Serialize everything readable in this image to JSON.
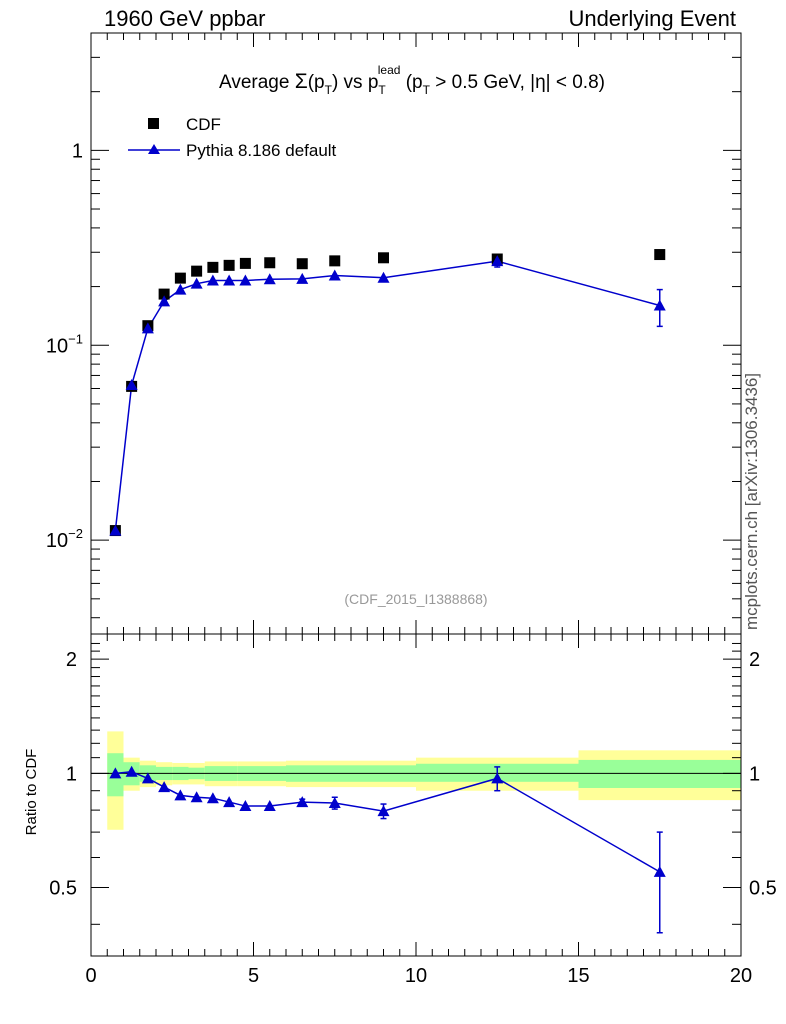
{
  "header": {
    "left": "1960 GeV ppbar",
    "right": "Underlying Event"
  },
  "watermark": "mcplots.cern.ch [arXiv:1306.3436]",
  "analysis_id": "(CDF_2015_I1388868)",
  "colors": {
    "cdf": "#000000",
    "pythia": "#0000cc",
    "band_inner": "#99ff99",
    "band_outer": "#ffff99",
    "analysis_label": "#999999"
  },
  "chart_data": [
    {
      "type": "scatter",
      "title_parts": {
        "prefix": "Average ",
        "sigma": "Σ",
        "pt1": "(p",
        "pt1_sub": "T",
        "mid": ") vs p",
        "lead_sub": "T",
        "lead_sup": "lead",
        "cut_open": " (p",
        "cut_sub": "T",
        "cut_text": " > 0.5 GeV, |η| < 0.8)"
      },
      "yscale": "log",
      "xlim": [
        0,
        20
      ],
      "ylim": [
        0.0033,
        4.0
      ],
      "yticks": [
        {
          "value": 0.01,
          "base": "10",
          "exp": "−2"
        },
        {
          "value": 0.1,
          "base": "10",
          "exp": "−1"
        },
        {
          "value": 1,
          "base": "1",
          "exp": ""
        }
      ],
      "legend": [
        "CDF",
        "Pythia 8.186 default"
      ],
      "legend_position": "top-left",
      "series": [
        {
          "name": "CDF",
          "marker": "square",
          "x": [
            0.75,
            1.25,
            1.75,
            2.25,
            2.75,
            3.25,
            3.75,
            4.25,
            4.75,
            5.5,
            6.5,
            7.5,
            9.0,
            12.5,
            17.5
          ],
          "y": [
            0.0112,
            0.0615,
            0.126,
            0.183,
            0.221,
            0.24,
            0.251,
            0.257,
            0.263,
            0.265,
            0.262,
            0.271,
            0.281,
            0.277,
            0.292
          ]
        },
        {
          "name": "Pythia 8.186 default",
          "marker": "triangle",
          "x": [
            0.75,
            1.25,
            1.75,
            2.25,
            2.75,
            3.25,
            3.75,
            4.25,
            4.75,
            5.5,
            6.5,
            7.5,
            9.0,
            12.5,
            17.5
          ],
          "y": [
            0.0112,
            0.0625,
            0.122,
            0.168,
            0.193,
            0.207,
            0.215,
            0.215,
            0.215,
            0.218,
            0.219,
            0.228,
            0.222,
            0.27,
            0.16
          ],
          "yerr_low": [
            0,
            0,
            0,
            0,
            0,
            0,
            0,
            0,
            0,
            0,
            0,
            0,
            0,
            0.018,
            0.035
          ],
          "yerr_high": [
            0,
            0,
            0,
            0,
            0,
            0,
            0,
            0,
            0,
            0,
            0,
            0,
            0,
            0.018,
            0.033
          ]
        }
      ]
    },
    {
      "type": "scatter",
      "ylabel": "Ratio to CDF",
      "xlim": [
        0,
        20
      ],
      "ylim": [
        0.33,
        2.33
      ],
      "yscale": "log",
      "xticks": [
        0,
        5,
        10,
        15,
        20
      ],
      "yticks": [
        0.5,
        1,
        2
      ],
      "ratio_bins": {
        "edges": [
          0.5,
          1.0,
          1.5,
          2.0,
          2.5,
          3.0,
          3.5,
          4.0,
          4.5,
          5.0,
          6.0,
          7.0,
          8.0,
          10.0,
          15.0,
          20.0
        ],
        "inner_lo": [
          0.87,
          0.93,
          0.95,
          0.96,
          0.96,
          0.965,
          0.955,
          0.955,
          0.955,
          0.955,
          0.95,
          0.95,
          0.95,
          0.95,
          0.915
        ],
        "inner_hi": [
          1.13,
          1.07,
          1.05,
          1.04,
          1.04,
          1.035,
          1.045,
          1.045,
          1.045,
          1.045,
          1.05,
          1.05,
          1.05,
          1.06,
          1.085
        ],
        "outer_lo": [
          0.71,
          0.9,
          0.92,
          0.93,
          0.935,
          0.935,
          0.925,
          0.925,
          0.925,
          0.925,
          0.92,
          0.92,
          0.92,
          0.9,
          0.85
        ],
        "outer_hi": [
          1.29,
          1.1,
          1.08,
          1.07,
          1.065,
          1.065,
          1.075,
          1.075,
          1.075,
          1.075,
          1.08,
          1.08,
          1.08,
          1.1,
          1.15
        ]
      },
      "series": [
        {
          "name": "Pythia 8.186 default",
          "x": [
            0.75,
            1.25,
            1.75,
            2.25,
            2.75,
            3.25,
            3.75,
            4.25,
            4.75,
            5.5,
            6.5,
            7.5,
            9.0,
            12.5,
            17.5
          ],
          "y": [
            1.0,
            1.01,
            0.97,
            0.92,
            0.875,
            0.865,
            0.86,
            0.84,
            0.82,
            0.82,
            0.84,
            0.835,
            0.795,
            0.97,
            0.55
          ],
          "yerr_low": [
            0,
            0,
            0,
            0,
            0,
            0,
            0,
            0,
            0,
            0,
            0.015,
            0.03,
            0.035,
            0.07,
            0.17
          ],
          "yerr_high": [
            0,
            0,
            0,
            0,
            0,
            0,
            0,
            0,
            0,
            0,
            0.015,
            0.03,
            0.035,
            0.07,
            0.15
          ]
        }
      ]
    }
  ]
}
